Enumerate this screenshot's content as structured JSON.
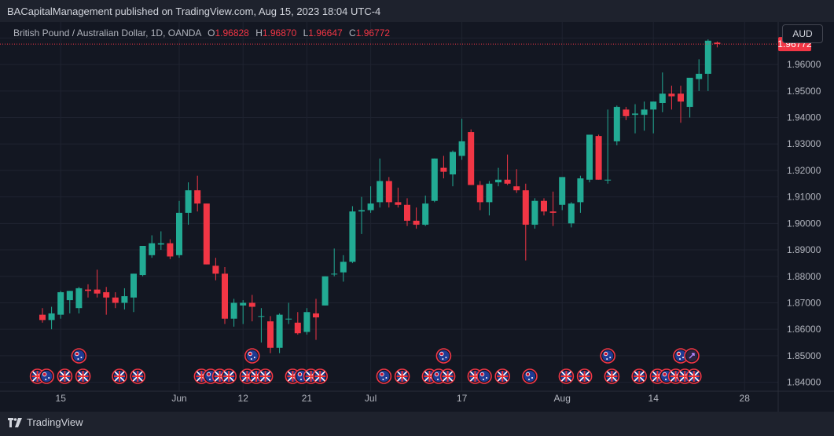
{
  "header": {
    "publisher_line": "BACapitalManagement published on TradingView.com, Aug 15, 2023 18:04 UTC-4"
  },
  "legend": {
    "symbol": "British Pound / Australian Dollar, 1D, OANDA",
    "o_label": "O",
    "o_value": "1.96828",
    "h_label": "H",
    "h_value": "1.96870",
    "l_label": "L",
    "l_value": "1.96647",
    "c_label": "C",
    "c_value": "1.96772"
  },
  "currency_button": "AUD",
  "price_tag": "1.96772",
  "footer": {
    "brand": "TradingView"
  },
  "colors": {
    "up": "#22ab94",
    "down": "#f23645",
    "bg": "#131722",
    "grid": "#1f2330"
  },
  "chart_data": {
    "type": "candlestick",
    "title": "British Pound / Australian Dollar, 1D, OANDA",
    "ylim": [
      1.8375,
      1.9725
    ],
    "yticks": [
      "1.84000",
      "1.85000",
      "1.86000",
      "1.87000",
      "1.88000",
      "1.89000",
      "1.90000",
      "1.91000",
      "1.92000",
      "1.93000",
      "1.94000",
      "1.95000",
      "1.96000",
      "1.97000"
    ],
    "xticks": [
      {
        "label": "15",
        "i": 2
      },
      {
        "label": "Jun",
        "i": 15
      },
      {
        "label": "12",
        "i": 22
      },
      {
        "label": "21",
        "i": 29
      },
      {
        "label": "Jul",
        "i": 36
      },
      {
        "label": "17",
        "i": 46
      },
      {
        "label": "Aug",
        "i": 57
      },
      {
        "label": "14",
        "i": 67
      },
      {
        "label": "28",
        "i": 77
      }
    ],
    "last_price": 1.96772,
    "candles": [
      [
        1.8655,
        1.868,
        1.8625,
        1.8635
      ],
      [
        1.8635,
        1.8685,
        1.86,
        1.866
      ],
      [
        1.8655,
        1.8745,
        1.864,
        1.874
      ],
      [
        1.871,
        1.8745,
        1.866,
        1.8745
      ],
      [
        1.868,
        1.876,
        1.866,
        1.8755
      ],
      [
        1.875,
        1.877,
        1.872,
        1.8745
      ],
      [
        1.875,
        1.8825,
        1.872,
        1.8735
      ],
      [
        1.874,
        1.876,
        1.8655,
        1.872
      ],
      [
        1.872,
        1.874,
        1.868,
        1.87
      ],
      [
        1.87,
        1.8755,
        1.8675,
        1.8725
      ],
      [
        1.872,
        1.881,
        1.8665,
        1.881
      ],
      [
        1.8805,
        1.8915,
        1.88,
        1.8915
      ],
      [
        1.888,
        1.8955,
        1.887,
        1.8925
      ],
      [
        1.892,
        1.897,
        1.89,
        1.8925
      ],
      [
        1.8925,
        1.894,
        1.8865,
        1.8875
      ],
      [
        1.888,
        1.9085,
        1.887,
        1.904
      ],
      [
        1.904,
        1.9155,
        1.8995,
        1.9125
      ],
      [
        1.9125,
        1.918,
        1.9045,
        1.9075
      ],
      [
        1.9075,
        1.9075,
        1.8845,
        1.8845
      ],
      [
        1.884,
        1.887,
        1.8785,
        1.881
      ],
      [
        1.881,
        1.8835,
        1.862,
        1.864
      ],
      [
        1.864,
        1.8715,
        1.861,
        1.87
      ],
      [
        1.869,
        1.871,
        1.862,
        1.87
      ],
      [
        1.87,
        1.873,
        1.863,
        1.8685
      ],
      [
        1.865,
        1.868,
        1.855,
        1.865
      ],
      [
        1.863,
        1.865,
        1.851,
        1.853
      ],
      [
        1.853,
        1.866,
        1.851,
        1.8655
      ],
      [
        1.864,
        1.87,
        1.862,
        1.864
      ],
      [
        1.8625,
        1.8665,
        1.858,
        1.8585
      ],
      [
        1.859,
        1.868,
        1.858,
        1.8665
      ],
      [
        1.866,
        1.8715,
        1.856,
        1.8645
      ],
      [
        1.869,
        1.88,
        1.869,
        1.88
      ],
      [
        1.881,
        1.8905,
        1.88,
        1.881
      ],
      [
        1.8815,
        1.888,
        1.878,
        1.8855
      ],
      [
        1.8855,
        1.9065,
        1.885,
        1.9045
      ],
      [
        1.9045,
        1.91,
        1.896,
        1.905
      ],
      [
        1.905,
        1.914,
        1.904,
        1.9075
      ],
      [
        1.908,
        1.9245,
        1.906,
        1.916
      ],
      [
        1.916,
        1.9175,
        1.906,
        1.908
      ],
      [
        1.908,
        1.9135,
        1.906,
        1.907
      ],
      [
        1.907,
        1.9095,
        1.899,
        1.901
      ],
      [
        1.901,
        1.906,
        1.898,
        1.8995
      ],
      [
        1.8995,
        1.9105,
        1.899,
        1.9075
      ],
      [
        1.9085,
        1.9245,
        1.908,
        1.9245
      ],
      [
        1.921,
        1.9255,
        1.917,
        1.9195
      ],
      [
        1.9185,
        1.9275,
        1.914,
        1.927
      ],
      [
        1.9255,
        1.9395,
        1.924,
        1.931
      ],
      [
        1.9345,
        1.9355,
        1.9145,
        1.9145
      ],
      [
        1.9145,
        1.916,
        1.905,
        1.908
      ],
      [
        1.908,
        1.916,
        1.903,
        1.915
      ],
      [
        1.9155,
        1.921,
        1.914,
        1.9165
      ],
      [
        1.9165,
        1.926,
        1.9145,
        1.915
      ],
      [
        1.914,
        1.9205,
        1.9115,
        1.9125
      ],
      [
        1.9125,
        1.915,
        1.886,
        1.8995
      ],
      [
        1.8995,
        1.9095,
        1.898,
        1.9085
      ],
      [
        1.9085,
        1.9095,
        1.903,
        1.9045
      ],
      [
        1.9045,
        1.912,
        1.899,
        1.904
      ],
      [
        1.907,
        1.9175,
        1.905,
        1.9175
      ]
    ],
    "candles_tail": [
      [
        1.9,
        1.908,
        1.8985,
        1.9075
      ],
      [
        1.908,
        1.918,
        1.904,
        1.917
      ],
      [
        1.9165,
        1.9335,
        1.9155,
        1.9335
      ],
      [
        1.933,
        1.9335,
        1.9165,
        1.9165
      ],
      [
        1.9165,
        1.943,
        1.915,
        1.9165
      ],
      [
        1.931,
        1.9445,
        1.9295,
        1.944
      ],
      [
        1.943,
        1.944,
        1.939,
        1.9405
      ],
      [
        1.941,
        1.945,
        1.934,
        1.9415
      ],
      [
        1.941,
        1.946,
        1.935,
        1.943
      ],
      [
        1.943,
        1.946,
        1.934,
        1.946
      ],
      [
        1.9455,
        1.957,
        1.942,
        1.949
      ],
      [
        1.949,
        1.952,
        1.943,
        1.948
      ],
      [
        1.949,
        1.952,
        1.938,
        1.946
      ],
      [
        1.944,
        1.955,
        1.94,
        1.955
      ],
      [
        1.9545,
        1.962,
        1.95,
        1.9565
      ],
      [
        1.9565,
        1.9695,
        1.95,
        1.969
      ],
      [
        1.96828,
        1.9687,
        1.96647,
        1.96772
      ]
    ],
    "event_markers_row1": [
      {
        "i": 4,
        "flag": "au"
      },
      {
        "i": 23,
        "flag": "au"
      },
      {
        "i": 44,
        "flag": "au"
      },
      {
        "i": 62,
        "flag": "au"
      },
      {
        "i": 70,
        "flag": "au"
      },
      {
        "i": 71,
        "flag": "special"
      }
    ],
    "event_markers_row2": [
      {
        "i": 1,
        "flag": "uk"
      },
      {
        "i": 2,
        "flag": "au"
      },
      {
        "i": 4,
        "flag": "uk"
      },
      {
        "i": 6,
        "flag": "uk"
      },
      {
        "i": 10,
        "flag": "uk"
      },
      {
        "i": 12,
        "flag": "uk"
      },
      {
        "i": 19,
        "flag": "uk"
      },
      {
        "i": 20,
        "flag": "au"
      },
      {
        "i": 21,
        "flag": "uk"
      },
      {
        "i": 22,
        "flag": "uk"
      },
      {
        "i": 24,
        "flag": "uk"
      },
      {
        "i": 25,
        "flag": "uk"
      },
      {
        "i": 26,
        "flag": "uk"
      },
      {
        "i": 29,
        "flag": "uk"
      },
      {
        "i": 30,
        "flag": "au"
      },
      {
        "i": 31,
        "flag": "uk"
      },
      {
        "i": 32,
        "flag": "uk"
      },
      {
        "i": 39,
        "flag": "au"
      },
      {
        "i": 41,
        "flag": "uk"
      },
      {
        "i": 44,
        "flag": "uk"
      },
      {
        "i": 45,
        "flag": "au"
      },
      {
        "i": 46,
        "flag": "uk"
      },
      {
        "i": 49,
        "flag": "uk"
      },
      {
        "i": 50,
        "flag": "au"
      },
      {
        "i": 52,
        "flag": "uk"
      },
      {
        "i": 55,
        "flag": "au"
      },
      {
        "i": 59,
        "flag": "uk"
      },
      {
        "i": 61,
        "flag": "uk"
      },
      {
        "i": 64,
        "flag": "uk"
      },
      {
        "i": 67,
        "flag": "uk"
      },
      {
        "i": 69,
        "flag": "uk"
      },
      {
        "i": 70,
        "flag": "au"
      },
      {
        "i": 71,
        "flag": "uk"
      },
      {
        "i": 72,
        "flag": "uk"
      },
      {
        "i": 73,
        "flag": "uk"
      }
    ]
  }
}
